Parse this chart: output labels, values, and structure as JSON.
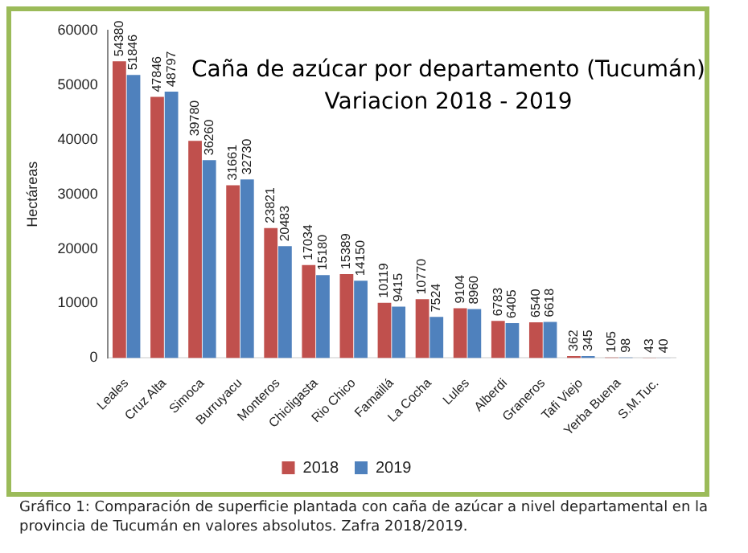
{
  "chart_data": {
    "type": "bar",
    "title": "Caña de azúcar por departamento (Tucumán)\nVariacion 2018 - 2019",
    "ylabel": "Hectáreas",
    "categories": [
      "Leales",
      "Cruz Alta",
      "Simoca",
      "Burruyacu",
      "Monteros",
      "Chicligasta",
      "Rio Chico",
      "Famaillá",
      "La Cocha",
      "Lules",
      "Alberdi",
      "Graneros",
      "Tafi Viejo",
      "Yerba Buena",
      "S.M.Tuc."
    ],
    "series": [
      {
        "name": "2018",
        "color": "#c0504d",
        "values": [
          54380,
          47846,
          39780,
          31661,
          23821,
          17034,
          15389,
          10119,
          10770,
          9104,
          6783,
          6540,
          362,
          105,
          43
        ]
      },
      {
        "name": "2019",
        "color": "#4f81bd",
        "values": [
          51846,
          48797,
          36260,
          32730,
          20483,
          15180,
          14150,
          9415,
          7524,
          8960,
          6405,
          6618,
          345,
          98,
          40
        ]
      }
    ],
    "ylim": [
      0,
      60000
    ],
    "yticks": [
      0,
      10000,
      20000,
      30000,
      40000,
      50000,
      60000
    ],
    "grid": false,
    "legend": "bottom",
    "data_labels": true,
    "annotations": [
      "Gráfico 1: Comparación de superficie plantada con caña de azúcar a nivel departamental en la provincia de Tucumán en valores absolutos. Zafra 2018/2019."
    ]
  }
}
